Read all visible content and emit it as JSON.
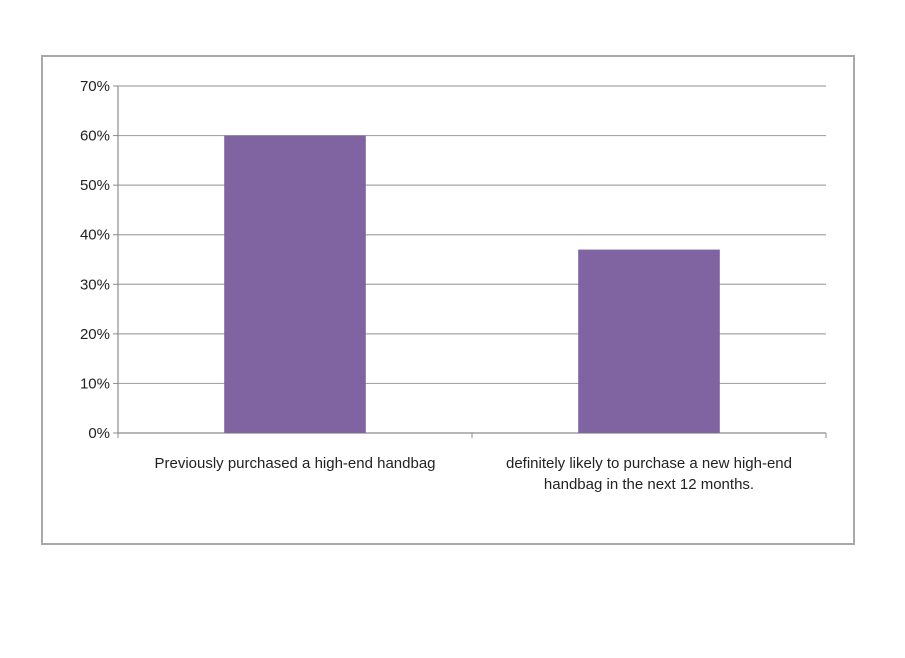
{
  "chart_data": {
    "type": "bar",
    "categories": [
      "Previously purchased a high-end handbag",
      "definitely likely to purchase a new high-end handbag in the next 12 months."
    ],
    "series": [
      {
        "values": [
          60,
          37
        ]
      }
    ],
    "yticks": [
      "0%",
      "10%",
      "20%",
      "30%",
      "40%",
      "50%",
      "60%",
      "70%"
    ],
    "ylim": [
      0,
      70
    ],
    "ytick_step": 10,
    "grid": true,
    "legend": "none",
    "colors": {
      "bar": "#8064a2",
      "grid": "#a6a6a6",
      "axis": "#8c8c8c",
      "border": "#a9a9a9"
    }
  }
}
